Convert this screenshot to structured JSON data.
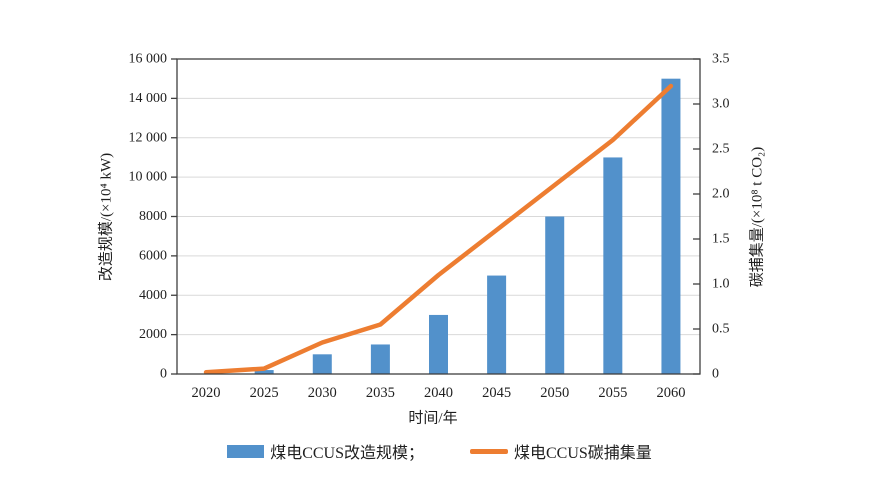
{
  "axes": {
    "left_title": "改造规模/(×10⁴ kW)",
    "right_title": "碳捕集量/(×10⁸ t CO₂)",
    "x_title": "时间/年"
  },
  "legend": {
    "bar_label": "煤电CCUS改造规模；",
    "line_label": "煤电CCUS碳捕集量"
  },
  "colors": {
    "bar": "#5291CB",
    "line": "#ED7D31",
    "grid": "#D9D9D9",
    "axis": "#3F3F3F",
    "text": "#1f1f1f"
  },
  "chart_data": {
    "type": "combo",
    "subtype": [
      "bar",
      "line"
    ],
    "title": "",
    "categories": [
      "2020",
      "2025",
      "2030",
      "2035",
      "2040",
      "2045",
      "2050",
      "2055",
      "2060"
    ],
    "series": [
      {
        "name": "煤电CCUS改造规模",
        "type": "bar",
        "axis": "left",
        "color": "#5291CB",
        "values": [
          0,
          200,
          1000,
          1500,
          3000,
          5000,
          8000,
          11000,
          15000
        ]
      },
      {
        "name": "煤电CCUS碳捕集量",
        "type": "line",
        "axis": "right",
        "color": "#ED7D31",
        "values": [
          0.02,
          0.06,
          0.35,
          0.55,
          1.1,
          1.6,
          2.1,
          2.6,
          3.2
        ]
      }
    ],
    "left_axis": {
      "label": "改造规模/(×10⁴ kW)",
      "min": 0,
      "max": 16000,
      "tick_interval": 2000,
      "tick_labels": [
        "0",
        "2000",
        "4000",
        "6000",
        "8000",
        "10 000",
        "12 000",
        "14 000",
        "16 000"
      ]
    },
    "right_axis": {
      "label": "碳捕集量/(×10⁸ t CO₂)",
      "min": 0,
      "max": 3.5,
      "tick_interval": 0.5,
      "tick_labels": [
        "0",
        "0.5",
        "1.0",
        "1.5",
        "2.0",
        "2.5",
        "3.0",
        "3.5"
      ]
    },
    "x_axis": {
      "label": "时间/年"
    },
    "grid": "horizontal",
    "plot_border": "box",
    "legend_position": "bottom"
  }
}
